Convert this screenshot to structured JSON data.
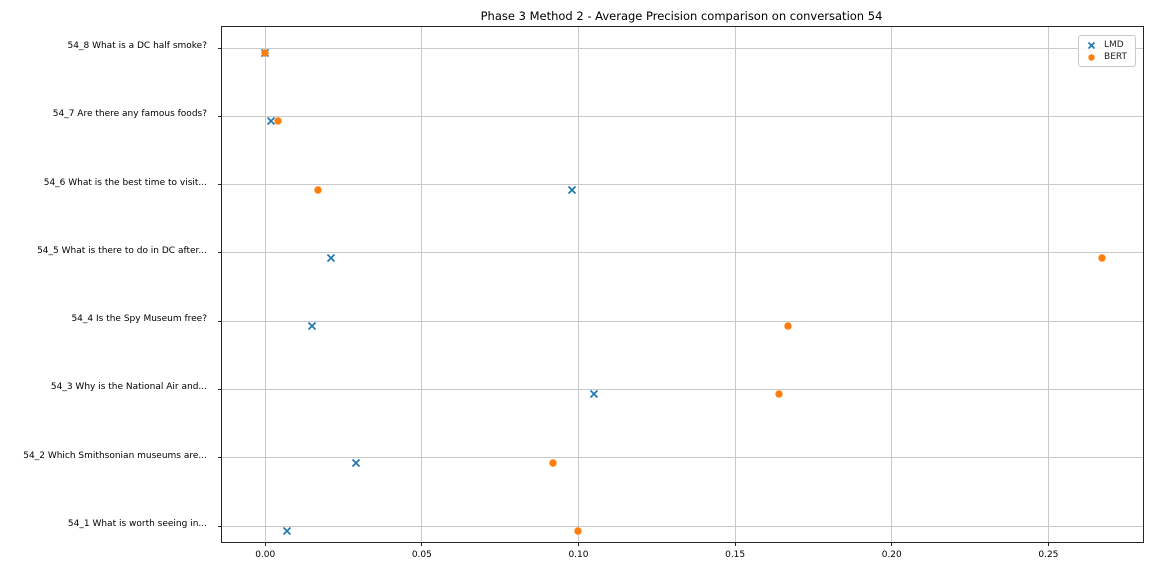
{
  "figure": {
    "title": "Phase 3 Method 2 - Average Precision comparison on conversation 54"
  },
  "chart_data": {
    "type": "scatter",
    "orientation": "horizontal_categorical",
    "title": "Phase 3 Method 2 - Average Precision comparison on conversation 54",
    "xlabel": "",
    "ylabel": "",
    "categories_bottom_to_top": [
      "54_1 What is worth seeing in...",
      "54_2 Which Smithsonian museums are...",
      "54_3 Why is the National Air and...",
      "54_4 Is the Spy Museum free?",
      "54_5 What is there to do in DC after...",
      "54_6 What is the best time to visit...",
      "54_7 Are there any famous foods?",
      "54_8 What is a DC half smoke?"
    ],
    "series": [
      {
        "name": "LMD",
        "marker": "x",
        "color": "#1f77b4",
        "values": [
          0.007,
          0.029,
          0.105,
          0.015,
          0.021,
          0.098,
          0.002,
          0.0
        ]
      },
      {
        "name": "BERT",
        "marker": "circle",
        "color": "#ff7f0e",
        "values": [
          0.1,
          0.092,
          0.164,
          0.167,
          0.267,
          0.017,
          0.004,
          0.0
        ]
      }
    ],
    "x_ticks": [
      0.0,
      0.05,
      0.1,
      0.15,
      0.2,
      0.25
    ],
    "x_tick_labels": [
      "0.00",
      "0.05",
      "0.10",
      "0.15",
      "0.20",
      "0.25"
    ],
    "xlim": [
      -0.0138,
      0.2802
    ],
    "grid": true,
    "legend": {
      "position": "upper right"
    },
    "colors": {
      "lmd": "#1f77b4",
      "bert": "#ff7f0e",
      "grid": "#c9c9c9",
      "spine": "#262626"
    }
  }
}
